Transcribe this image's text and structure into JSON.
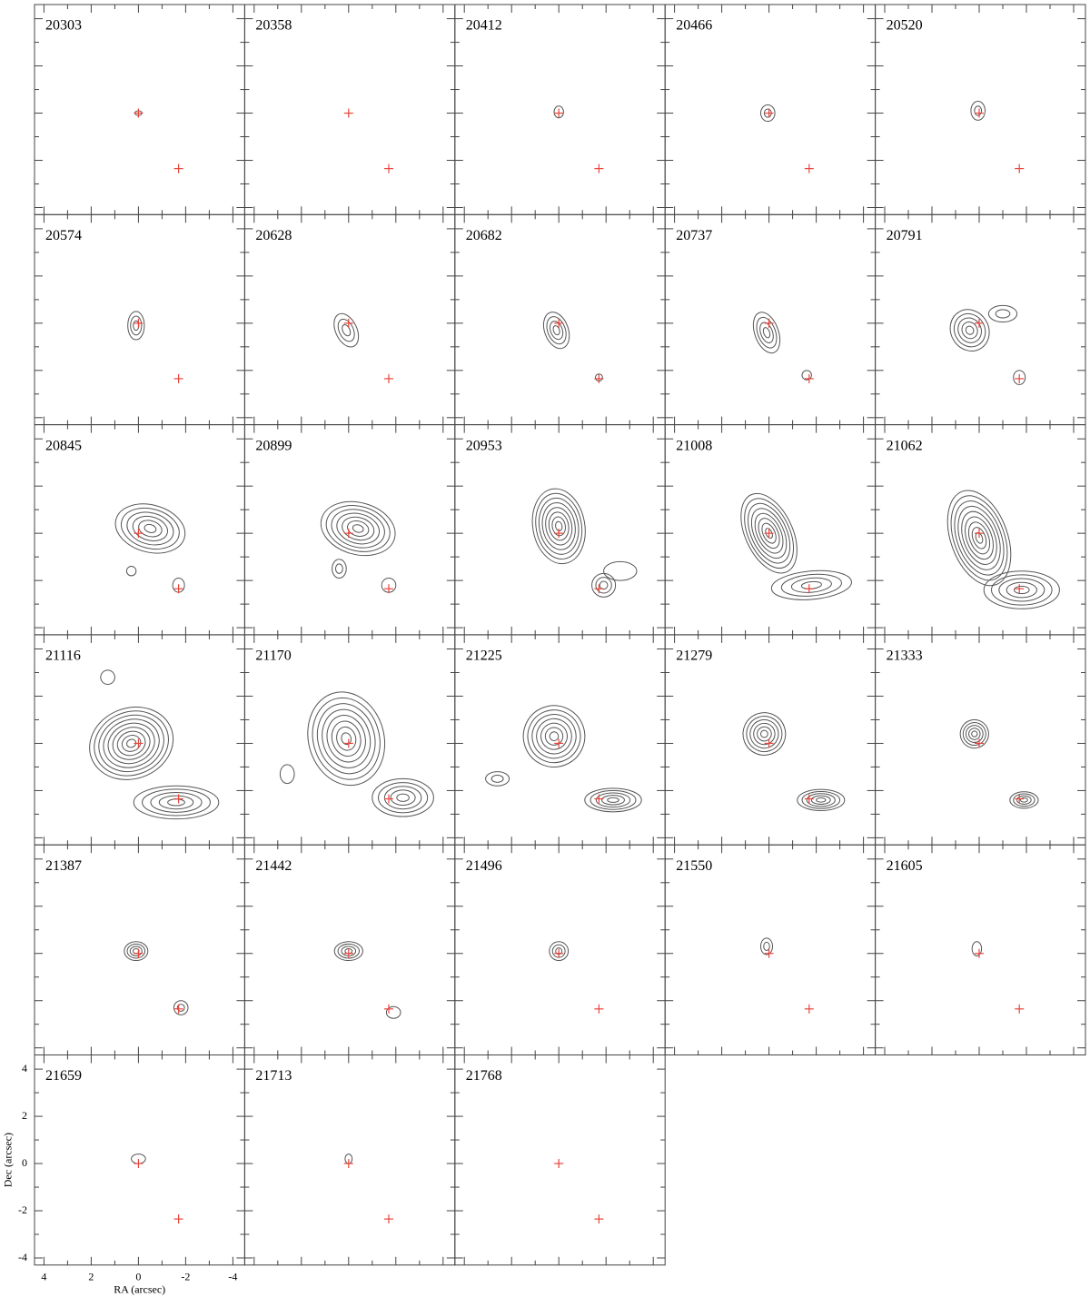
{
  "chart_data": {
    "type": "contour",
    "x_label": "RA (arcsec)",
    "y_label": "Dec (arcsec)",
    "xlim": [
      4.4,
      -4.5
    ],
    "ylim": [
      -4.3,
      4.6
    ],
    "xticks": [
      4,
      2,
      0,
      -2,
      -4
    ],
    "yticks": [
      -4,
      -2,
      0,
      2,
      4
    ],
    "x_minor_ticks": [
      3,
      1,
      -1,
      -3
    ],
    "y_minor_ticks": [
      -3,
      -1,
      1,
      3
    ],
    "marker_color": "#e8453c",
    "contour_color": "#555555",
    "markers": {
      "x": [
        0,
        -1.7
      ],
      "y": [
        0,
        -2.35
      ]
    },
    "panels": [
      {
        "label": "20303",
        "contours": [
          [
            0,
            0,
            0.15,
            0.1,
            1,
            0
          ]
        ]
      },
      {
        "label": "20358",
        "contours": []
      },
      {
        "label": "20412",
        "contours": [
          [
            0,
            0.05,
            0.2,
            0.25,
            1,
            0
          ]
        ]
      },
      {
        "label": "20466",
        "contours": [
          [
            0.05,
            0,
            0.3,
            0.35,
            2,
            0
          ]
        ]
      },
      {
        "label": "20520",
        "contours": [
          [
            0.05,
            0.1,
            0.3,
            0.4,
            2,
            0
          ]
        ]
      },
      {
        "label": "20574",
        "contours": [
          [
            0.1,
            -0.1,
            0.35,
            0.6,
            3,
            0
          ]
        ]
      },
      {
        "label": "20628",
        "contours": [
          [
            0.1,
            -0.3,
            0.45,
            0.75,
            3,
            -25
          ]
        ]
      },
      {
        "label": "20682",
        "contours": [
          [
            0.1,
            -0.3,
            0.5,
            0.8,
            4,
            -20
          ],
          [
            -1.7,
            -2.3,
            0.15,
            0.15,
            1,
            0
          ]
        ]
      },
      {
        "label": "20737",
        "contours": [
          [
            0.1,
            -0.4,
            0.5,
            0.9,
            4,
            -20
          ],
          [
            -1.6,
            -2.2,
            0.2,
            0.2,
            1,
            0
          ]
        ]
      },
      {
        "label": "20791",
        "contours": [
          [
            0.4,
            -0.3,
            0.8,
            0.9,
            5,
            -30
          ],
          [
            -1.0,
            0.4,
            0.6,
            0.35,
            2,
            0
          ],
          [
            -1.7,
            -2.3,
            0.25,
            0.3,
            1,
            0
          ]
        ]
      },
      {
        "label": "20845",
        "contours": [
          [
            -0.5,
            0.2,
            1.5,
            1.0,
            6,
            15
          ],
          [
            -1.7,
            -2.2,
            0.25,
            0.3,
            1,
            0
          ],
          [
            0.3,
            -1.6,
            0.2,
            0.2,
            1,
            0
          ]
        ]
      },
      {
        "label": "20899",
        "contours": [
          [
            -0.4,
            0.2,
            1.6,
            1.1,
            7,
            15
          ],
          [
            -1.7,
            -2.2,
            0.3,
            0.3,
            1,
            0
          ],
          [
            0.4,
            -1.5,
            0.3,
            0.4,
            2,
            0
          ]
        ]
      },
      {
        "label": "20953",
        "contours": [
          [
            0,
            0.3,
            1.1,
            1.6,
            8,
            -10
          ],
          [
            -1.9,
            -2.2,
            0.5,
            0.5,
            3,
            0
          ],
          [
            -2.6,
            -1.6,
            0.7,
            0.4,
            1,
            0
          ]
        ]
      },
      {
        "label": "21008",
        "contours": [
          [
            0,
            0,
            1.0,
            1.8,
            8,
            -25
          ],
          [
            -1.8,
            -2.2,
            1.7,
            0.6,
            4,
            -5
          ]
        ]
      },
      {
        "label": "21062",
        "contours": [
          [
            0,
            -0.2,
            1.2,
            2.1,
            9,
            -20
          ],
          [
            -1.8,
            -2.4,
            1.6,
            0.8,
            5,
            0
          ]
        ]
      },
      {
        "label": "21116",
        "contours": [
          [
            0.3,
            0,
            1.8,
            1.5,
            9,
            -20
          ],
          [
            -1.6,
            -2.5,
            1.8,
            0.7,
            5,
            0
          ],
          [
            1.3,
            2.8,
            0.3,
            0.3,
            1,
            0
          ]
        ]
      },
      {
        "label": "21170",
        "contours": [
          [
            0.1,
            0.2,
            1.6,
            2.0,
            8,
            -15
          ],
          [
            -2.3,
            -2.3,
            1.3,
            0.8,
            5,
            0
          ],
          [
            2.6,
            -1.3,
            0.3,
            0.4,
            1,
            0
          ]
        ]
      },
      {
        "label": "21225",
        "contours": [
          [
            0.2,
            0.3,
            1.3,
            1.3,
            7,
            -20
          ],
          [
            -2.3,
            -2.4,
            1.2,
            0.5,
            5,
            0
          ],
          [
            2.6,
            -1.5,
            0.5,
            0.3,
            2,
            0
          ]
        ]
      },
      {
        "label": "21279",
        "contours": [
          [
            0.2,
            0.4,
            0.9,
            0.9,
            6,
            -20
          ],
          [
            -2.2,
            -2.4,
            1.0,
            0.45,
            5,
            0
          ]
        ]
      },
      {
        "label": "21333",
        "contours": [
          [
            0.2,
            0.4,
            0.6,
            0.6,
            5,
            -20
          ],
          [
            -1.9,
            -2.4,
            0.6,
            0.35,
            4,
            0
          ]
        ]
      },
      {
        "label": "21387",
        "contours": [
          [
            0.1,
            0.1,
            0.5,
            0.4,
            4,
            0
          ],
          [
            -1.8,
            -2.3,
            0.3,
            0.3,
            2,
            0
          ]
        ]
      },
      {
        "label": "21442",
        "contours": [
          [
            0,
            0.1,
            0.6,
            0.4,
            4,
            0
          ],
          [
            -1.9,
            -2.5,
            0.3,
            0.25,
            1,
            0
          ]
        ]
      },
      {
        "label": "21496",
        "contours": [
          [
            0,
            0.1,
            0.4,
            0.4,
            3,
            0
          ]
        ]
      },
      {
        "label": "21550",
        "contours": [
          [
            0.1,
            0.3,
            0.25,
            0.35,
            2,
            0
          ]
        ]
      },
      {
        "label": "21605",
        "contours": [
          [
            0.1,
            0.2,
            0.2,
            0.3,
            1,
            0
          ]
        ]
      },
      {
        "label": "21659",
        "contours": [
          [
            0,
            0.2,
            0.3,
            0.2,
            1,
            0
          ]
        ]
      },
      {
        "label": "21713",
        "contours": [
          [
            0,
            0.2,
            0.15,
            0.2,
            1,
            0
          ]
        ]
      },
      {
        "label": "21768",
        "contours": []
      }
    ]
  }
}
